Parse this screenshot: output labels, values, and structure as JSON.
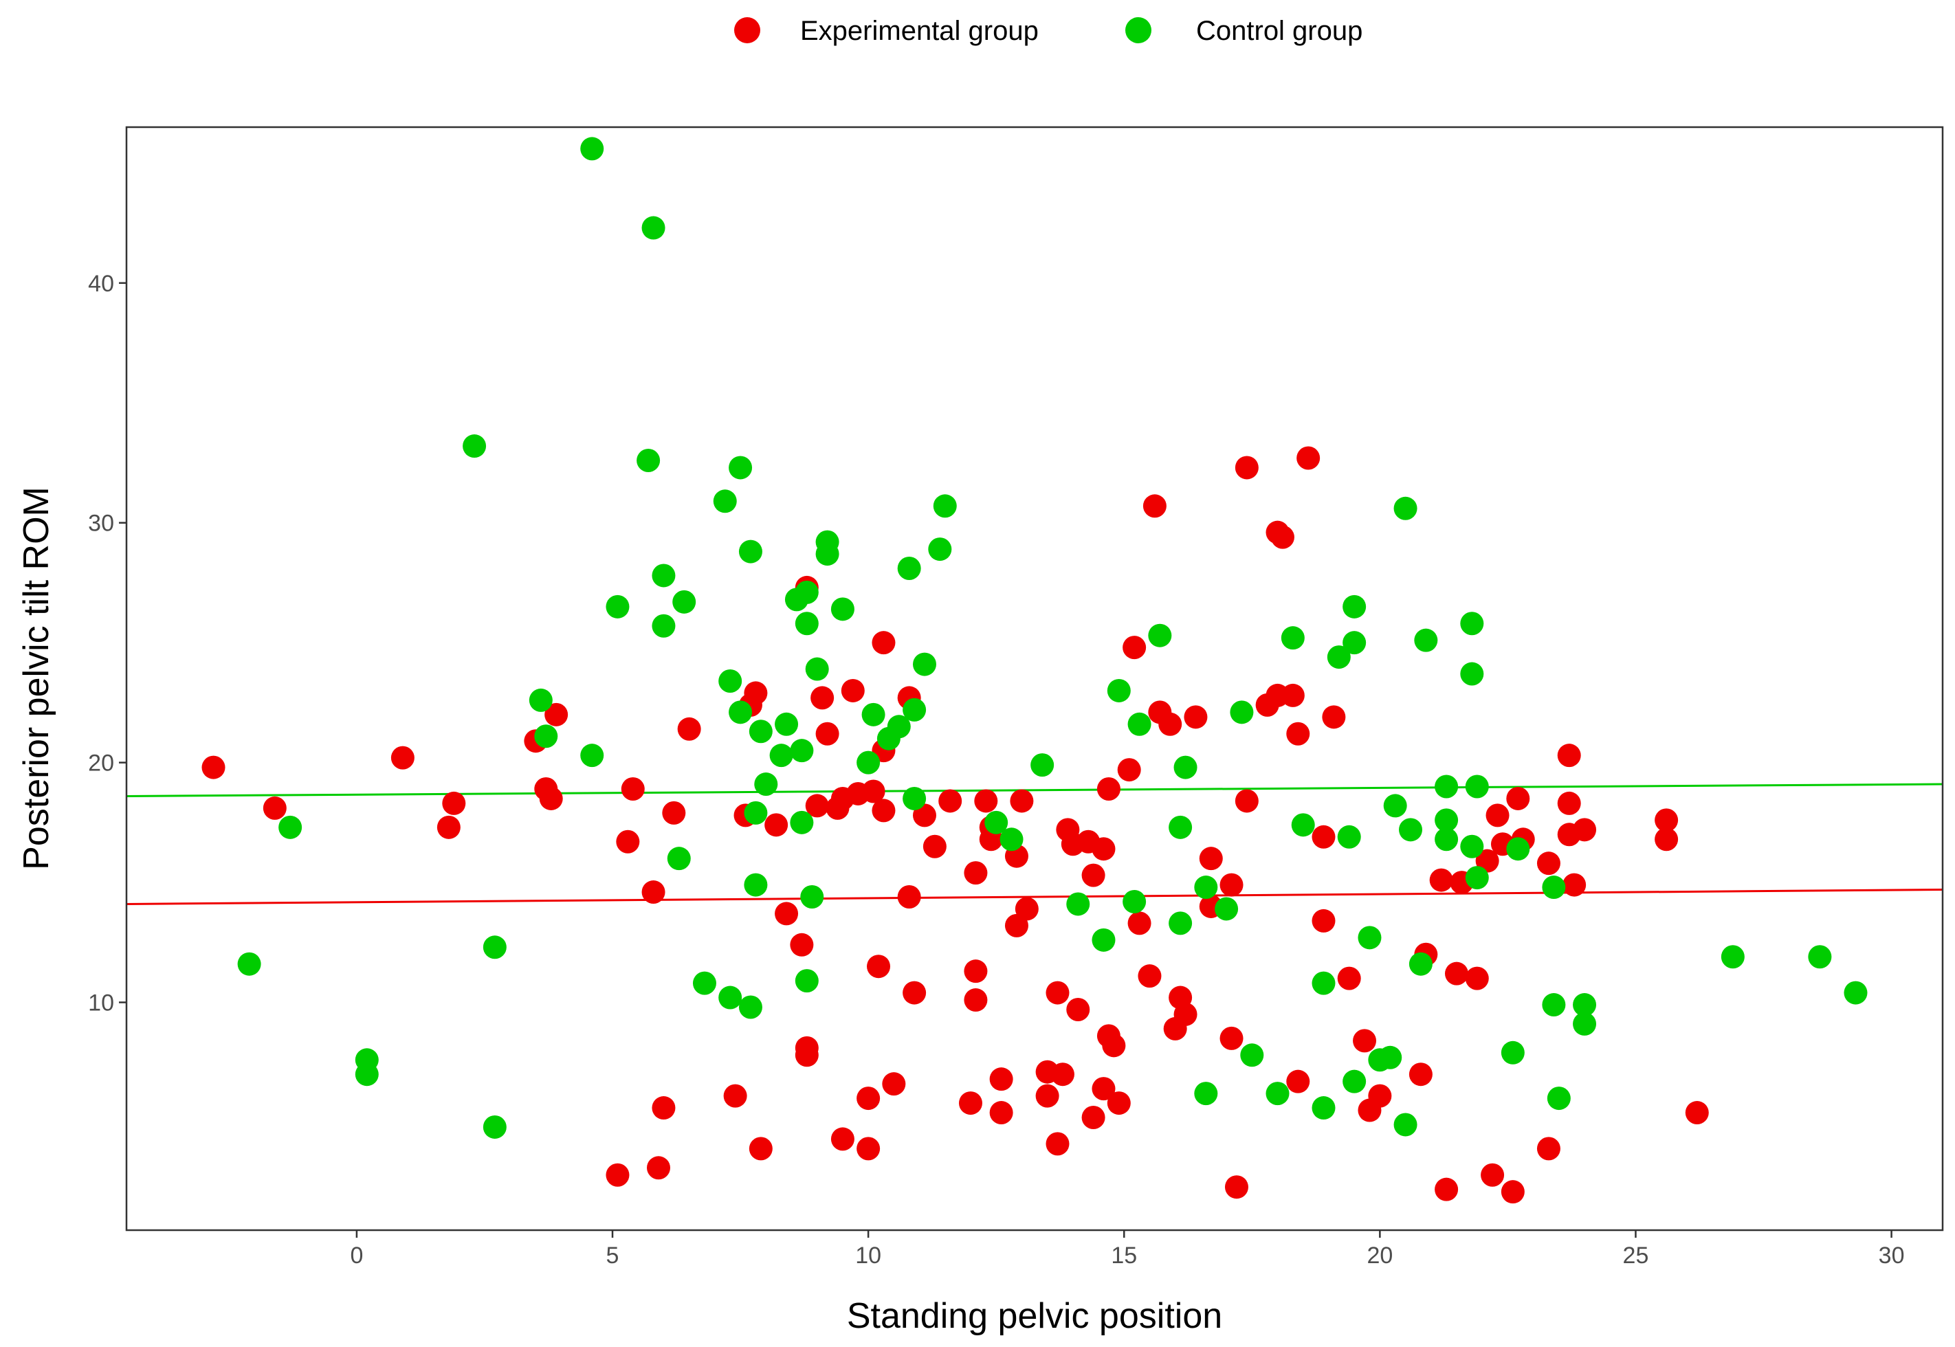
{
  "chart_data": {
    "type": "scatter",
    "title": "",
    "xlabel": "Standing pelvic position",
    "ylabel": "Posterior pelvic tilt ROM",
    "xlim": [
      -4.5,
      31
    ],
    "ylim": [
      0.5,
      46.5
    ],
    "xticks": [
      0,
      5,
      10,
      15,
      20,
      25,
      30
    ],
    "yticks": [
      10,
      20,
      30,
      40
    ],
    "grid": false,
    "legend_position": "top",
    "series": [
      {
        "name": "Experimental group",
        "color": "#ee0000",
        "trend": [
          [
            -4.5,
            14.1
          ],
          [
            31,
            14.7
          ]
        ],
        "points": [
          [
            -2.8,
            19.8
          ],
          [
            -1.6,
            18.1
          ],
          [
            0.9,
            20.2
          ],
          [
            1.8,
            17.3
          ],
          [
            1.9,
            18.3
          ],
          [
            3.5,
            20.9
          ],
          [
            3.7,
            18.9
          ],
          [
            3.8,
            18.5
          ],
          [
            3.9,
            22.0
          ],
          [
            5.1,
            2.8
          ],
          [
            5.3,
            16.7
          ],
          [
            5.4,
            18.9
          ],
          [
            5.8,
            14.6
          ],
          [
            5.9,
            3.1
          ],
          [
            6.0,
            5.6
          ],
          [
            6.2,
            17.9
          ],
          [
            6.5,
            21.4
          ],
          [
            7.4,
            6.1
          ],
          [
            7.6,
            17.8
          ],
          [
            7.7,
            22.4
          ],
          [
            7.8,
            22.9
          ],
          [
            7.9,
            3.9
          ],
          [
            8.2,
            17.4
          ],
          [
            8.4,
            13.7
          ],
          [
            8.7,
            12.4
          ],
          [
            8.8,
            27.3
          ],
          [
            8.8,
            8.1
          ],
          [
            8.8,
            7.8
          ],
          [
            9.0,
            18.2
          ],
          [
            9.1,
            22.7
          ],
          [
            9.2,
            21.2
          ],
          [
            9.4,
            18.1
          ],
          [
            9.5,
            18.5
          ],
          [
            9.5,
            4.3
          ],
          [
            9.7,
            23.0
          ],
          [
            9.8,
            18.7
          ],
          [
            10.0,
            6.0
          ],
          [
            10.0,
            3.9
          ],
          [
            10.1,
            18.8
          ],
          [
            10.2,
            11.5
          ],
          [
            10.3,
            25.0
          ],
          [
            10.3,
            20.5
          ],
          [
            10.3,
            18.0
          ],
          [
            10.5,
            6.6
          ],
          [
            10.8,
            22.7
          ],
          [
            10.8,
            14.4
          ],
          [
            10.9,
            10.4
          ],
          [
            11.1,
            17.8
          ],
          [
            11.3,
            16.5
          ],
          [
            11.6,
            18.4
          ],
          [
            12.0,
            5.8
          ],
          [
            12.1,
            15.4
          ],
          [
            12.1,
            11.3
          ],
          [
            12.1,
            10.1
          ],
          [
            12.3,
            18.4
          ],
          [
            12.4,
            17.3
          ],
          [
            12.4,
            16.8
          ],
          [
            12.6,
            6.8
          ],
          [
            12.6,
            5.4
          ],
          [
            12.9,
            16.1
          ],
          [
            12.9,
            13.2
          ],
          [
            13.0,
            18.4
          ],
          [
            13.1,
            13.9
          ],
          [
            13.5,
            7.1
          ],
          [
            13.5,
            6.1
          ],
          [
            13.7,
            10.4
          ],
          [
            13.7,
            4.1
          ],
          [
            13.8,
            7.0
          ],
          [
            13.9,
            17.2
          ],
          [
            14.0,
            16.6
          ],
          [
            14.1,
            9.7
          ],
          [
            14.3,
            16.7
          ],
          [
            14.4,
            15.3
          ],
          [
            14.4,
            5.2
          ],
          [
            14.6,
            16.4
          ],
          [
            14.6,
            6.4
          ],
          [
            14.7,
            8.6
          ],
          [
            14.7,
            18.9
          ],
          [
            14.8,
            8.2
          ],
          [
            14.9,
            5.8
          ],
          [
            15.1,
            19.7
          ],
          [
            15.2,
            24.8
          ],
          [
            15.3,
            13.3
          ],
          [
            15.5,
            11.1
          ],
          [
            15.6,
            30.7
          ],
          [
            15.7,
            22.1
          ],
          [
            15.9,
            21.6
          ],
          [
            16.0,
            8.9
          ],
          [
            16.1,
            10.2
          ],
          [
            16.2,
            9.5
          ],
          [
            16.4,
            21.9
          ],
          [
            16.7,
            16.0
          ],
          [
            16.7,
            14.0
          ],
          [
            17.1,
            14.9
          ],
          [
            17.1,
            8.5
          ],
          [
            17.2,
            2.3
          ],
          [
            17.4,
            32.3
          ],
          [
            17.4,
            18.4
          ],
          [
            17.8,
            22.4
          ],
          [
            18.0,
            29.6
          ],
          [
            18.0,
            22.8
          ],
          [
            18.1,
            29.4
          ],
          [
            18.3,
            22.8
          ],
          [
            18.4,
            21.2
          ],
          [
            18.4,
            6.7
          ],
          [
            18.6,
            32.7
          ],
          [
            18.9,
            16.9
          ],
          [
            18.9,
            13.4
          ],
          [
            19.1,
            21.9
          ],
          [
            19.4,
            11.0
          ],
          [
            19.7,
            8.4
          ],
          [
            19.8,
            5.5
          ],
          [
            20.0,
            6.1
          ],
          [
            20.8,
            7.0
          ],
          [
            20.9,
            12.0
          ],
          [
            21.2,
            15.1
          ],
          [
            21.3,
            2.2
          ],
          [
            21.5,
            11.2
          ],
          [
            21.6,
            15.0
          ],
          [
            21.9,
            11.0
          ],
          [
            22.1,
            15.9
          ],
          [
            22.2,
            2.8
          ],
          [
            22.3,
            17.8
          ],
          [
            22.4,
            16.6
          ],
          [
            22.6,
            2.1
          ],
          [
            22.7,
            18.5
          ],
          [
            22.8,
            16.8
          ],
          [
            23.3,
            15.8
          ],
          [
            23.3,
            3.9
          ],
          [
            23.7,
            18.3
          ],
          [
            23.7,
            20.3
          ],
          [
            23.7,
            17.0
          ],
          [
            23.8,
            14.9
          ],
          [
            24.0,
            17.2
          ],
          [
            25.6,
            17.6
          ],
          [
            25.6,
            16.8
          ],
          [
            26.2,
            5.4
          ]
        ]
      },
      {
        "name": "Control group",
        "color": "#00cc00",
        "trend": [
          [
            -4.5,
            18.6
          ],
          [
            31,
            19.1
          ]
        ],
        "points": [
          [
            -2.1,
            11.6
          ],
          [
            -1.3,
            17.3
          ],
          [
            0.2,
            7.6
          ],
          [
            0.2,
            7.0
          ],
          [
            2.3,
            33.2
          ],
          [
            2.7,
            12.3
          ],
          [
            2.7,
            4.8
          ],
          [
            3.6,
            22.6
          ],
          [
            3.7,
            21.1
          ],
          [
            4.6,
            45.6
          ],
          [
            4.6,
            20.3
          ],
          [
            5.1,
            26.5
          ],
          [
            5.7,
            32.6
          ],
          [
            5.8,
            42.3
          ],
          [
            6.0,
            27.8
          ],
          [
            6.0,
            25.7
          ],
          [
            6.3,
            16.0
          ],
          [
            6.4,
            26.7
          ],
          [
            6.8,
            10.8
          ],
          [
            7.2,
            30.9
          ],
          [
            7.3,
            23.4
          ],
          [
            7.3,
            10.2
          ],
          [
            7.5,
            32.3
          ],
          [
            7.5,
            22.1
          ],
          [
            7.7,
            28.8
          ],
          [
            7.7,
            9.8
          ],
          [
            7.8,
            14.9
          ],
          [
            7.8,
            17.9
          ],
          [
            7.9,
            21.3
          ],
          [
            8.0,
            19.1
          ],
          [
            8.3,
            20.3
          ],
          [
            8.4,
            21.6
          ],
          [
            8.6,
            26.8
          ],
          [
            8.7,
            20.5
          ],
          [
            8.7,
            17.5
          ],
          [
            8.8,
            25.8
          ],
          [
            8.8,
            27.1
          ],
          [
            8.8,
            10.9
          ],
          [
            8.9,
            14.4
          ],
          [
            9.0,
            23.9
          ],
          [
            9.2,
            28.7
          ],
          [
            9.2,
            29.2
          ],
          [
            9.5,
            26.4
          ],
          [
            10.0,
            20.0
          ],
          [
            10.1,
            22.0
          ],
          [
            10.4,
            21.0
          ],
          [
            10.6,
            21.5
          ],
          [
            10.8,
            28.1
          ],
          [
            10.9,
            22.2
          ],
          [
            10.9,
            18.5
          ],
          [
            11.1,
            24.1
          ],
          [
            11.4,
            28.9
          ],
          [
            11.5,
            30.7
          ],
          [
            12.5,
            17.5
          ],
          [
            12.8,
            16.8
          ],
          [
            13.4,
            19.9
          ],
          [
            14.1,
            14.1
          ],
          [
            14.6,
            12.6
          ],
          [
            14.9,
            23.0
          ],
          [
            15.2,
            14.2
          ],
          [
            15.3,
            21.6
          ],
          [
            15.7,
            25.3
          ],
          [
            16.1,
            13.3
          ],
          [
            16.1,
            17.3
          ],
          [
            16.2,
            19.8
          ],
          [
            16.6,
            14.8
          ],
          [
            16.6,
            6.2
          ],
          [
            17.0,
            13.9
          ],
          [
            17.3,
            22.1
          ],
          [
            17.5,
            7.8
          ],
          [
            18.0,
            6.2
          ],
          [
            18.3,
            25.2
          ],
          [
            18.5,
            17.4
          ],
          [
            18.9,
            10.8
          ],
          [
            18.9,
            5.6
          ],
          [
            19.2,
            24.4
          ],
          [
            19.4,
            16.9
          ],
          [
            19.5,
            26.5
          ],
          [
            19.5,
            25.0
          ],
          [
            19.5,
            6.7
          ],
          [
            19.8,
            12.7
          ],
          [
            20.0,
            7.6
          ],
          [
            20.2,
            7.7
          ],
          [
            20.3,
            18.2
          ],
          [
            20.5,
            30.6
          ],
          [
            20.5,
            4.9
          ],
          [
            20.6,
            17.2
          ],
          [
            20.8,
            11.6
          ],
          [
            20.9,
            25.1
          ],
          [
            21.3,
            19.0
          ],
          [
            21.3,
            17.6
          ],
          [
            21.3,
            16.8
          ],
          [
            21.8,
            25.8
          ],
          [
            21.8,
            23.7
          ],
          [
            21.8,
            16.5
          ],
          [
            21.9,
            19.0
          ],
          [
            21.9,
            15.2
          ],
          [
            22.6,
            7.9
          ],
          [
            22.7,
            16.4
          ],
          [
            23.4,
            9.9
          ],
          [
            23.4,
            14.8
          ],
          [
            23.5,
            6.0
          ],
          [
            24.0,
            9.9
          ],
          [
            24.0,
            9.1
          ],
          [
            26.9,
            11.9
          ],
          [
            28.6,
            11.9
          ],
          [
            29.3,
            10.4
          ]
        ]
      }
    ]
  }
}
